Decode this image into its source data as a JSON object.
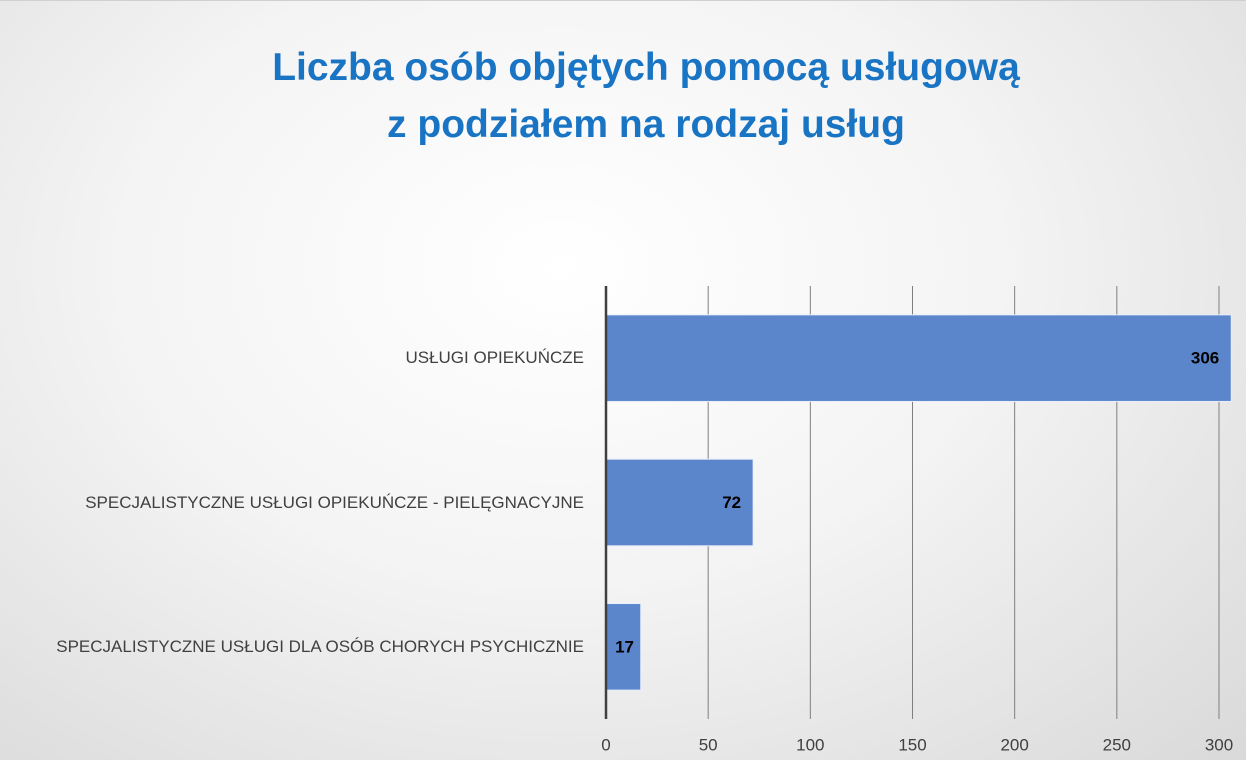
{
  "chart_data": {
    "type": "hbar",
    "title": "Liczba osób objętych pomocą usługową\nz podziałem na rodzaj usług",
    "categories": [
      "USŁUGI OPIEKUŃCZE",
      "SPECJALISTYCZNE USŁUGI OPIEKUŃCZE - PIELĘGNACYJNE",
      "SPECJALISTYCZNE USŁUGI DLA OSÓB CHORYCH PSYCHICZNIE"
    ],
    "values": [
      306,
      72,
      17
    ],
    "color": "#5b86cc",
    "xlim": [
      0,
      300
    ],
    "xticks": [
      0,
      50,
      100,
      150,
      200,
      250,
      300
    ],
    "grid": true
  }
}
